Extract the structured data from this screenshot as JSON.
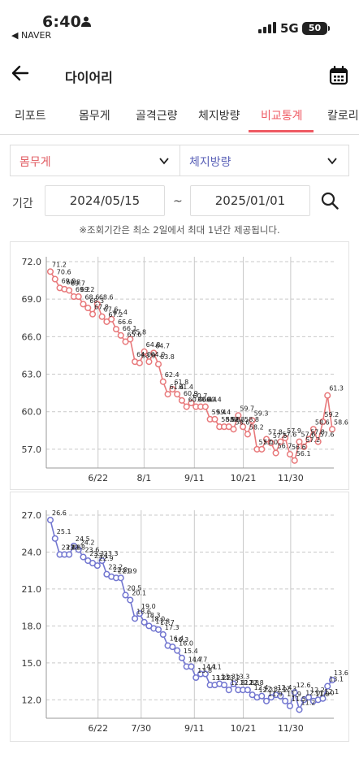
{
  "status": {
    "time": "6:40",
    "back_app": "◀ NAVER",
    "network": "5G",
    "battery": "50"
  },
  "header": {
    "title": "다이어리"
  },
  "tabs": [
    {
      "label": "리포트",
      "active": false
    },
    {
      "label": "몸무게",
      "active": false
    },
    {
      "label": "골격근량",
      "active": false
    },
    {
      "label": "체지방량",
      "active": false
    },
    {
      "label": "비교통계",
      "active": true
    },
    {
      "label": "칼로리",
      "active": false
    }
  ],
  "compare": {
    "left_select": "몸무게",
    "right_select": "체지방량",
    "left_color": "#e05a60",
    "right_color": "#5b62b8"
  },
  "period": {
    "label": "기간",
    "start": "2024/05/15",
    "separator": "~",
    "end": "2025/01/01"
  },
  "note": "※조회기간은 최소 2일에서 최대 1년간 제공됩니다.",
  "chart_data": [
    {
      "type": "line",
      "series": [
        {
          "color": "#e8797b",
          "values": [
            71.2,
            70.6,
            69.9,
            69.8,
            69.7,
            69.2,
            69.2,
            68.6,
            68.3,
            67.8,
            68.6,
            67.6,
            67.2,
            67.4,
            66.6,
            66.1,
            65.6,
            65.8,
            64.0,
            63.9,
            64.8,
            64.0,
            64.7,
            63.8,
            62.4,
            61.4,
            61.8,
            61.4,
            60.9,
            60.4,
            60.7,
            60.4,
            60.4,
            60.4,
            59.4,
            59.4,
            58.8,
            58.8,
            58.8,
            58.6,
            59.7,
            58.8,
            58.2,
            59.3,
            57.0,
            57.0,
            57.8,
            57.5,
            56.7,
            57.6,
            57.9,
            56.6,
            56.1,
            57.6,
            57.2,
            57.8,
            58.6,
            57.6,
            59.2,
            61.3,
            58.6
          ]
        }
      ],
      "ylim": [
        55.5,
        72.0
      ],
      "yticks": [
        "72.0",
        "69.0",
        "66.0",
        "63.0",
        "60.0",
        "57.0"
      ],
      "xticks": [
        "6/22",
        "8/1",
        "9/11",
        "10/21",
        "11/30"
      ],
      "labels": [
        "71.2",
        "70.6",
        "69.9",
        "69.8",
        "69.7",
        "69.2",
        "69.2",
        "68.6",
        "68.3",
        "67.8",
        "68.6",
        "67.6",
        "67.2",
        "67.4",
        "66.6",
        "66.1",
        "65.6",
        "65.8",
        "64.0",
        "63.9",
        "64.8",
        "64.0",
        "64.7",
        "63.8",
        "62.4",
        "61.4",
        "61.8",
        "61.4",
        "60.9",
        "60.4",
        "60.7",
        "60.4",
        "60.4",
        "60.4",
        "59.4",
        "59.4",
        "58.8",
        "58.8",
        "58.8",
        "58.6",
        "59.7",
        "58.8",
        "58.2",
        "59.3",
        "57.0",
        "57.0",
        "57.8",
        "57.5",
        "56.7",
        "57.6",
        "57.9",
        "56.6",
        "56.1",
        "57.6",
        "57.2",
        "57.8",
        "58.6",
        "57.6",
        "59.2",
        "61.3",
        "58.6"
      ]
    },
    {
      "type": "line",
      "series": [
        {
          "color": "#7276d0",
          "values": [
            26.6,
            25.1,
            23.8,
            23.8,
            23.8,
            24.5,
            24.2,
            23.6,
            23.3,
            23.1,
            22.9,
            23.3,
            22.2,
            22.0,
            21.9,
            21.9,
            20.5,
            20.1,
            18.6,
            19.0,
            18.3,
            18.0,
            17.8,
            17.7,
            17.3,
            16.4,
            16.3,
            16.0,
            15.4,
            14.7,
            14.7,
            13.8,
            14.1,
            14.1,
            13.2,
            13.2,
            13.3,
            13.2,
            12.8,
            13.3,
            12.8,
            12.8,
            12.8,
            12.4,
            12.2,
            12.3,
            11.9,
            12.2,
            12.4,
            12.3,
            11.9,
            11.5,
            12.6,
            11.2,
            12.0,
            12.2,
            11.9,
            12.0,
            12.1,
            13.1,
            13.6
          ]
        }
      ],
      "ylim": [
        10.5,
        27.0
      ],
      "yticks": [
        "27.0",
        "24.0",
        "21.0",
        "18.0",
        "15.0",
        "12.0"
      ],
      "xticks": [
        "6/22",
        "7/30",
        "9/11",
        "10/21",
        "11/30"
      ],
      "labels": [
        "26.6",
        "25.1",
        "23.8",
        "23.8",
        "23.8",
        "24.5",
        "24.2",
        "23.6",
        "23.3",
        "23.1",
        "22.9",
        "23.3",
        "22.2",
        "22.0",
        "21.9",
        "21.9",
        "20.5",
        "20.1",
        "18.6",
        "19.0",
        "18.3",
        "18.0",
        "17.8",
        "17.7",
        "17.3",
        "16.4",
        "16.3",
        "16.0",
        "15.4",
        "14.7",
        "14.7",
        "13.8",
        "14.1",
        "14.1",
        "13.2",
        "13.2",
        "13.3",
        "13.2",
        "12.8",
        "13.3",
        "12.8",
        "12.8",
        "12.8",
        "12.4",
        "12.2",
        "12.3",
        "11.9",
        "12.2",
        "12.4",
        "12.3",
        "11.9",
        "11.5",
        "12.6",
        "11.2",
        "12.0",
        "12.2",
        "11.9",
        "12.0",
        "12.1",
        "13.1",
        "13.6"
      ]
    }
  ]
}
